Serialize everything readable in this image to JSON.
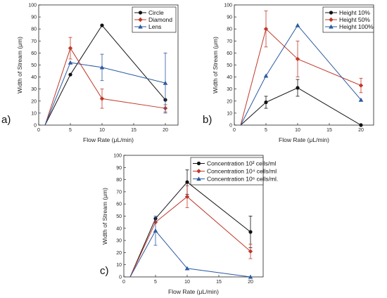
{
  "chart_data": [
    {
      "panel_label": "a)",
      "type": "line",
      "xlabel": "Flow Rate (μL/min)",
      "ylabel": "Width of Stream (μm)",
      "xlim": [
        0,
        22
      ],
      "ylim": [
        0,
        100
      ],
      "xticks": [
        0,
        5,
        10,
        15,
        20
      ],
      "yticks": [
        0,
        10,
        20,
        30,
        40,
        50,
        60,
        70,
        80,
        90,
        100
      ],
      "legend_position": "top-right",
      "series": [
        {
          "name": "Circle",
          "color": "#111111",
          "marker": "circle",
          "x": [
            1,
            5,
            10,
            20
          ],
          "y": [
            0,
            42,
            83,
            21
          ],
          "err": [
            0,
            0,
            0,
            0
          ]
        },
        {
          "name": "Diamond",
          "color": "#c0392b",
          "marker": "diamond",
          "x": [
            1,
            5,
            10,
            20
          ],
          "y": [
            0,
            64,
            22,
            14
          ],
          "err": [
            0,
            9,
            8,
            3
          ]
        },
        {
          "name": "Lens",
          "color": "#2c5aa0",
          "marker": "triangle",
          "x": [
            1,
            5,
            10,
            20
          ],
          "y": [
            0,
            52,
            48,
            35
          ],
          "err": [
            0,
            0,
            11,
            25
          ]
        }
      ]
    },
    {
      "panel_label": "b)",
      "type": "line",
      "xlabel": "Flow Rate (μL/min)",
      "ylabel": "Width of Stream (μm)",
      "xlim": [
        0,
        22
      ],
      "ylim": [
        0,
        100
      ],
      "xticks": [
        0,
        5,
        10,
        15,
        20
      ],
      "yticks": [
        0,
        10,
        20,
        30,
        40,
        50,
        60,
        70,
        80,
        90,
        100
      ],
      "legend_position": "top-right",
      "series": [
        {
          "name": "Height 10%",
          "color": "#111111",
          "marker": "circle",
          "x": [
            1,
            5,
            10,
            20
          ],
          "y": [
            0,
            19,
            31,
            0
          ],
          "err": [
            0,
            5,
            7,
            0
          ]
        },
        {
          "name": "Height 50%",
          "color": "#c0392b",
          "marker": "diamond",
          "x": [
            1,
            5,
            10,
            20
          ],
          "y": [
            0,
            80,
            55,
            33
          ],
          "err": [
            0,
            15,
            15,
            6
          ]
        },
        {
          "name": "Height 100%",
          "color": "#2c5aa0",
          "marker": "triangle",
          "x": [
            1,
            5,
            10,
            20
          ],
          "y": [
            0,
            41,
            83,
            21
          ],
          "err": [
            0,
            0,
            0,
            0
          ]
        }
      ]
    },
    {
      "panel_label": "c)",
      "type": "line",
      "xlabel": "Flow Rate (μL/min)",
      "ylabel": "Width of Stream (μm)",
      "xlim": [
        0,
        22
      ],
      "ylim": [
        0,
        100
      ],
      "xticks": [
        0,
        5,
        10,
        15,
        20
      ],
      "yticks": [
        0,
        10,
        20,
        30,
        40,
        50,
        60,
        70,
        80,
        90,
        100
      ],
      "legend_position": "top-right",
      "series": [
        {
          "name": "Concentration 10² cells/ml",
          "color": "#111111",
          "marker": "circle",
          "x": [
            1,
            5,
            10,
            20
          ],
          "y": [
            0,
            48,
            78,
            37
          ],
          "err": [
            0,
            0,
            10,
            13
          ]
        },
        {
          "name": "Concentration 10⁴ cells/ml",
          "color": "#c0392b",
          "marker": "diamond",
          "x": [
            1,
            5,
            10,
            20
          ],
          "y": [
            0,
            45,
            66,
            21
          ],
          "err": [
            0,
            0,
            9,
            6
          ]
        },
        {
          "name": "Concentration 10⁶ cells/ml.",
          "color": "#2c5aa0",
          "marker": "triangle",
          "x": [
            1,
            5,
            10,
            20
          ],
          "y": [
            0,
            38,
            7,
            0
          ],
          "err": [
            0,
            12,
            0,
            0
          ]
        }
      ]
    }
  ]
}
